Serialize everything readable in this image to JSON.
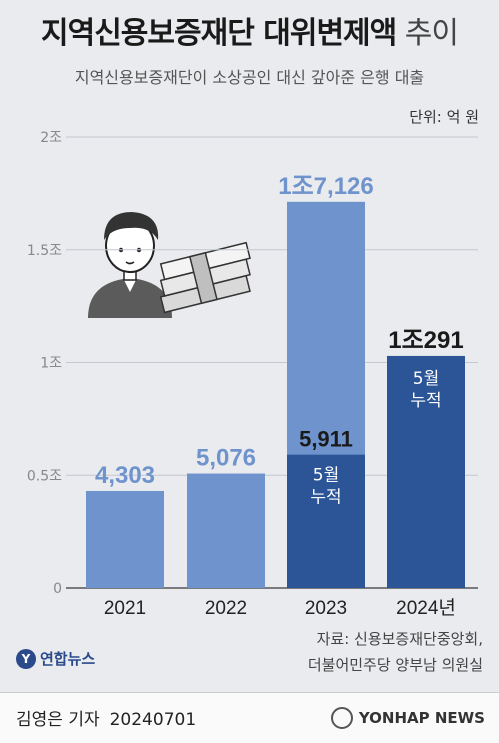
{
  "header": {
    "title_main": "지역신용보증재단 대위변제액",
    "title_light": " 추이",
    "subtitle": "지역신용보증재단이 소상공인 대신 갚아준 은행 대출",
    "unit": "단위: 억 원"
  },
  "chart_data": {
    "type": "bar",
    "categories": [
      "2021",
      "2022",
      "2023",
      "2024년"
    ],
    "values": [
      4303,
      5076,
      17126,
      10291
    ],
    "value_labels": [
      "4,303",
      "5,076",
      "1조7,126",
      "1조291"
    ],
    "partial": [
      {
        "category": "2023",
        "value": 5911,
        "value_label": "5,911",
        "note": "5월 누적"
      },
      {
        "category": "2024년",
        "value": 10291,
        "note": "5월 누적"
      }
    ],
    "y_ticks": [
      {
        "value": 0,
        "label": "0"
      },
      {
        "value": 5000,
        "label": "0.5조"
      },
      {
        "value": 10000,
        "label": "1조"
      },
      {
        "value": 15000,
        "label": "1.5조"
      },
      {
        "value": 20000,
        "label": "2조"
      }
    ],
    "ylim": [
      0,
      20000
    ],
    "colors": {
      "light": "#6f93cc",
      "dark": "#2b5597",
      "text_light": "#6f93cc",
      "text_dark": "#1a1a1a"
    }
  },
  "footer": {
    "source_line1": "자료: 신용보증재단중앙회,",
    "source_line2": "더불어민주당 양부남 의원실",
    "logo_text": "연합뉴스",
    "reporter": "김영은 기자",
    "date": "20240701",
    "agency": "YONHAP NEWS"
  }
}
